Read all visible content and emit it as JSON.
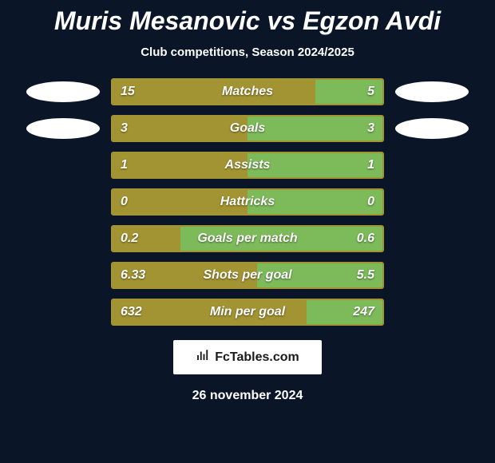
{
  "title": "Muris Mesanovic vs Egzon Avdi",
  "subtitle": "Club competitions, Season 2024/2025",
  "colors": {
    "background": "#0a1628",
    "left_fill": "#a39433",
    "right_fill": "#7dbb5a",
    "border": "#a39433",
    "text": "#ffffff",
    "avatar": "#ffffff"
  },
  "bar_style": {
    "height": 34,
    "gap": 12,
    "border_width": 2,
    "border_radius": 3,
    "label_fontsize": 16
  },
  "left_avatars": 2,
  "right_avatars": 2,
  "rows": [
    {
      "label": "Matches",
      "left_val": "15",
      "right_val": "5",
      "left_pct": 75,
      "right_pct": 25
    },
    {
      "label": "Goals",
      "left_val": "3",
      "right_val": "3",
      "left_pct": 50,
      "right_pct": 50
    },
    {
      "label": "Assists",
      "left_val": "1",
      "right_val": "1",
      "left_pct": 50,
      "right_pct": 50
    },
    {
      "label": "Hattricks",
      "left_val": "0",
      "right_val": "0",
      "left_pct": 50,
      "right_pct": 50
    },
    {
      "label": "Goals per match",
      "left_val": "0.2",
      "right_val": "0.6",
      "left_pct": 25,
      "right_pct": 75
    },
    {
      "label": "Shots per goal",
      "left_val": "6.33",
      "right_val": "5.5",
      "left_pct": 53.5,
      "right_pct": 46.5
    },
    {
      "label": "Min per goal",
      "left_val": "632",
      "right_val": "247",
      "left_pct": 71.9,
      "right_pct": 28.1
    }
  ],
  "brand": {
    "icon_name": "chart-bars-icon",
    "text": "FcTables.com"
  },
  "date": "26 november 2024"
}
